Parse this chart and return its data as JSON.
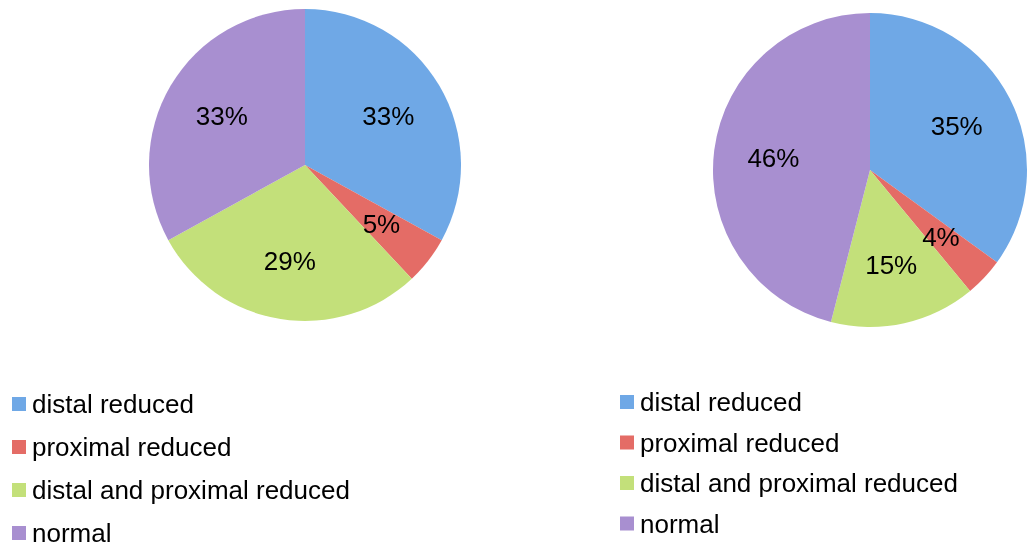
{
  "chart_data": [
    {
      "type": "pie",
      "categories": [
        "distal reduced",
        "proximal reduced",
        "distal and proximal reduced",
        "normal"
      ],
      "values": [
        33,
        5,
        29,
        33
      ],
      "colors": [
        "#6fa8e6",
        "#e46c66",
        "#c3e07a",
        "#a88fd0"
      ],
      "value_labels": [
        "33%",
        "5%",
        "29%",
        "33%"
      ],
      "legend": "bottom left"
    },
    {
      "type": "pie",
      "categories": [
        "distal reduced",
        "proximal reduced",
        "distal and proximal reduced",
        "normal"
      ],
      "values": [
        35,
        4,
        15,
        46
      ],
      "colors": [
        "#6fa8e6",
        "#e46c66",
        "#c3e07a",
        "#a88fd0"
      ],
      "value_labels": [
        "35%",
        "4%",
        "15%",
        "46%"
      ],
      "legend": "bottom left"
    }
  ]
}
